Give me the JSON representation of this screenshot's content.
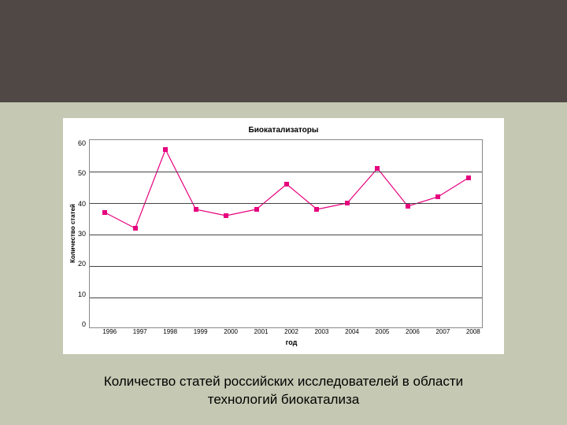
{
  "slide": {
    "top_band_color": "#4f4845",
    "background_color": "#c5c8b2"
  },
  "chart": {
    "type": "line",
    "title": "Биокатализаторы",
    "xlabel": "год",
    "ylabel": "Количество статей",
    "title_fontsize": 10,
    "label_fontsize": 9,
    "tick_fontsize": 9,
    "ylim": [
      0,
      60
    ],
    "ytick_step": 10,
    "yticks": [
      "60",
      "50",
      "40",
      "30",
      "20",
      "10",
      "0"
    ],
    "categories": [
      "1996",
      "1997",
      "1998",
      "1999",
      "2000",
      "2001",
      "2002",
      "2003",
      "2004",
      "2005",
      "2006",
      "2007",
      "2008"
    ],
    "values": [
      37,
      32,
      57,
      38,
      36,
      38,
      46,
      38,
      40,
      51,
      39,
      42,
      48
    ],
    "line_color": "#e6007e",
    "marker_style": "square",
    "marker_size": 6,
    "line_width": 1.2,
    "background_color": "#ffffff",
    "grid_color": "#444444",
    "border_color": "#888888"
  },
  "caption": {
    "line1": "Количество статей российских исследователей в области",
    "line2": "технологий биокатализа",
    "fontsize": 17
  }
}
